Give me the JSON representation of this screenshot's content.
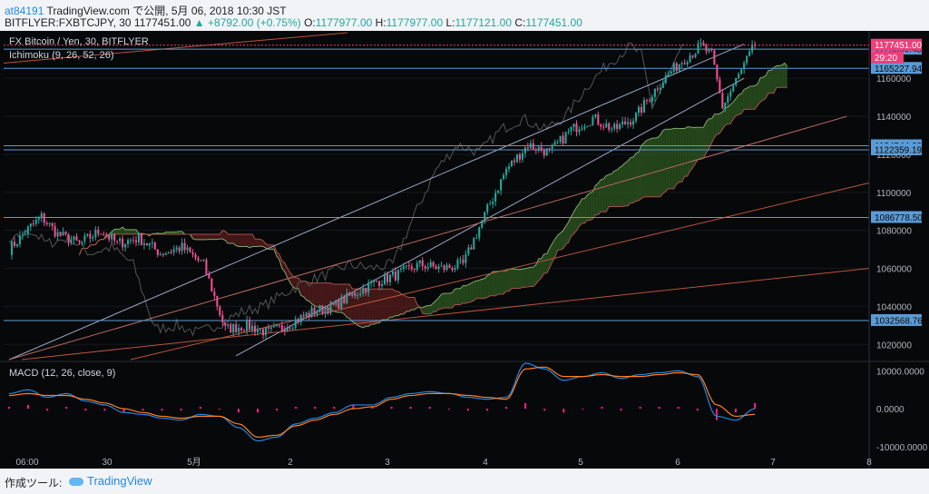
{
  "header": {
    "publisher": "at84191",
    "published_line": " TradingView.com で公開, 5月 06, 2018 10:30 JST",
    "symbol_line": "BITFLYER:FXBTCJPY, 30 1177451.00",
    "change": "▲ +8792.00 (+0.75%)",
    "o_label": " O:",
    "o_value": "1177977.00",
    "h_label": " H:",
    "h_value": "1177977.00",
    "l_label": " L:",
    "l_value": "1177121.00",
    "c_label": " C:",
    "c_value": "1177451.00"
  },
  "chart": {
    "title": "FX Bitcoin / Yen, 30, BITFLYER",
    "indicator": "Ichimoku (9, 26, 52, 26)",
    "macd_title": "MACD (12, 26, close, 9)"
  },
  "footer": {
    "label": "作成ツール:",
    "brand": "TradingView"
  },
  "colors": {
    "background": "#070809",
    "up": "#26a69a",
    "down": "#ef5090",
    "hline": "#5b9bd5",
    "price_tag": "#ef3e7a",
    "macd": "#1e88e5",
    "signal": "#ff7f1f",
    "hist": "#ff1f8f",
    "cloud_bull": "#2f5a22",
    "cloud_bear": "#5a1e1e"
  },
  "chart_data": [
    {
      "type": "candlestick",
      "title": "FX Bitcoin / Yen, 30, BITFLYER",
      "x_ticks": [
        "06:00",
        "30",
        "5月",
        "2",
        "3",
        "4",
        "5",
        "6",
        "7",
        "8"
      ],
      "y_ticks": [
        1020000,
        1040000,
        1060000,
        1080000,
        1100000,
        1120000,
        1140000,
        1160000
      ],
      "ylim": [
        1012000,
        1184000
      ],
      "close_path": [
        [
          0,
          1070000
        ],
        [
          8,
          1082000
        ],
        [
          12,
          1087000
        ],
        [
          18,
          1078000
        ],
        [
          26,
          1073000
        ],
        [
          34,
          1080000
        ],
        [
          40,
          1073000
        ],
        [
          48,
          1076000
        ],
        [
          56,
          1068000
        ],
        [
          64,
          1071000
        ],
        [
          72,
          1062000
        ],
        [
          80,
          1028000
        ],
        [
          88,
          1030000
        ],
        [
          96,
          1026000
        ],
        [
          104,
          1031000
        ],
        [
          112,
          1037000
        ],
        [
          120,
          1040000
        ],
        [
          128,
          1047000
        ],
        [
          136,
          1053000
        ],
        [
          144,
          1057000
        ],
        [
          152,
          1062000
        ],
        [
          160,
          1060000
        ],
        [
          168,
          1062000
        ],
        [
          176,
          1088000
        ],
        [
          184,
          1112000
        ],
        [
          192,
          1125000
        ],
        [
          200,
          1121000
        ],
        [
          208,
          1133000
        ],
        [
          216,
          1139000
        ],
        [
          224,
          1133000
        ],
        [
          232,
          1140000
        ],
        [
          240,
          1156000
        ],
        [
          248,
          1168000
        ],
        [
          256,
          1177000
        ],
        [
          260,
          1172000
        ],
        [
          264,
          1145000
        ],
        [
          268,
          1156000
        ],
        [
          276,
          1177451
        ]
      ],
      "last_price": 1177451.0,
      "countdown": "29:20",
      "horizontal_levels": [
        1175360.45,
        1165227.94,
        1124544.6,
        1122359.19,
        1086778.5,
        1032568.76
      ],
      "trend_lines": [
        {
          "from": [
            0,
            1012000
          ],
          "to": [
            272,
            1178000
          ]
        },
        {
          "from": [
            84,
            1014000
          ],
          "to": [
            272,
            1160000
          ]
        },
        {
          "from": [
            0,
            1012000
          ],
          "to": [
            310,
            1140000
          ]
        }
      ]
    },
    {
      "type": "line",
      "title": "MACD (12, 26, close, 9)",
      "y_ticks": [
        10000.0,
        0.0,
        -10000.0
      ],
      "y_tick_labels": [
        "10000.0000",
        "0.0000",
        "-10000.0000"
      ],
      "ylim": [
        -11000,
        12000
      ],
      "series": [
        {
          "values": [
            4000,
            5000,
            3000,
            4000,
            2000,
            1000,
            -1000,
            -1500,
            -2500,
            -3000,
            -1500,
            -2000,
            -5000,
            -8500,
            -7500,
            -4000,
            -2500,
            -1000,
            1000,
            1000,
            3000,
            4000,
            4500,
            4000,
            3000,
            2500,
            3000,
            12000,
            10500,
            7500,
            8500,
            9500,
            8000,
            9000,
            9500,
            10000,
            8500,
            -2000,
            -3000,
            0
          ]
        },
        {
          "values": [
            3500,
            4000,
            3500,
            3500,
            2500,
            1500,
            0,
            -1000,
            -2000,
            -2500,
            -2000,
            -2000,
            -4000,
            -7500,
            -7000,
            -4500,
            -3000,
            -1500,
            0,
            500,
            2500,
            3500,
            4000,
            4000,
            3500,
            3000,
            2500,
            10500,
            11000,
            8500,
            8500,
            9000,
            8500,
            8500,
            9000,
            9500,
            9000,
            1000,
            -2000,
            -1500
          ]
        }
      ]
    }
  ]
}
